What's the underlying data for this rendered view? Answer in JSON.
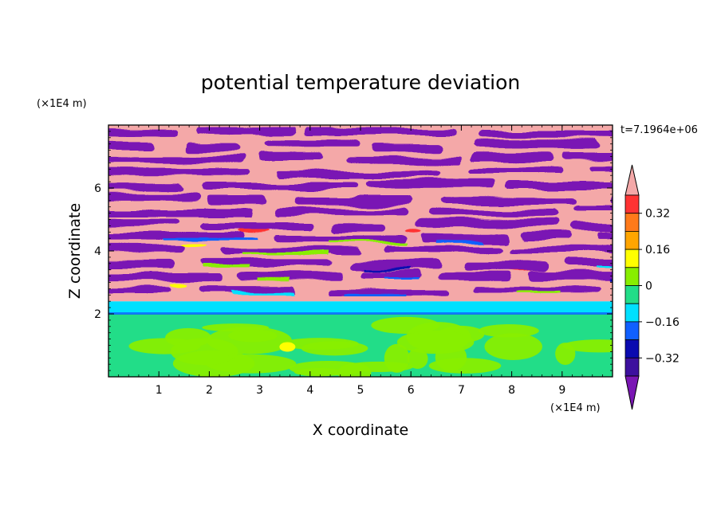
{
  "chart_data": {
    "type": "heatmap",
    "title": "potential temperature deviation",
    "xlabel": "X coordinate",
    "ylabel": "Z coordinate",
    "x_unit": "(×1E4 m)",
    "y_unit": "(×1E4 m)",
    "time_label": "t=7.1964e+06",
    "xlim": [
      0,
      10
    ],
    "ylim": [
      0,
      8
    ],
    "x_ticks": [
      "1",
      "2",
      "3",
      "4",
      "5",
      "6",
      "7",
      "8",
      "9"
    ],
    "y_ticks": [
      "2",
      "4",
      "6"
    ],
    "colorbar": {
      "labels": [
        "0.32",
        "0.16",
        "0",
        "-0.16",
        "-0.32"
      ],
      "colors": {
        "above": "#f4a8a8",
        "bands": [
          "#ff3333",
          "#ff7a1a",
          "#ffa500",
          "#ffff00",
          "#88ee00",
          "#22dd88",
          "#00e0ff",
          "#1060ff",
          "#0a0ab0",
          "#3d109e"
        ],
        "below": "#7a16b4"
      }
    },
    "regions": {
      "boundary_layer_top_z": 2.0,
      "transition_layer_z": [
        2.0,
        2.4
      ],
      "upper_pattern": "alternating horizontal bands of positive (pink) and negative (purple) deviation above z=2.4"
    }
  }
}
